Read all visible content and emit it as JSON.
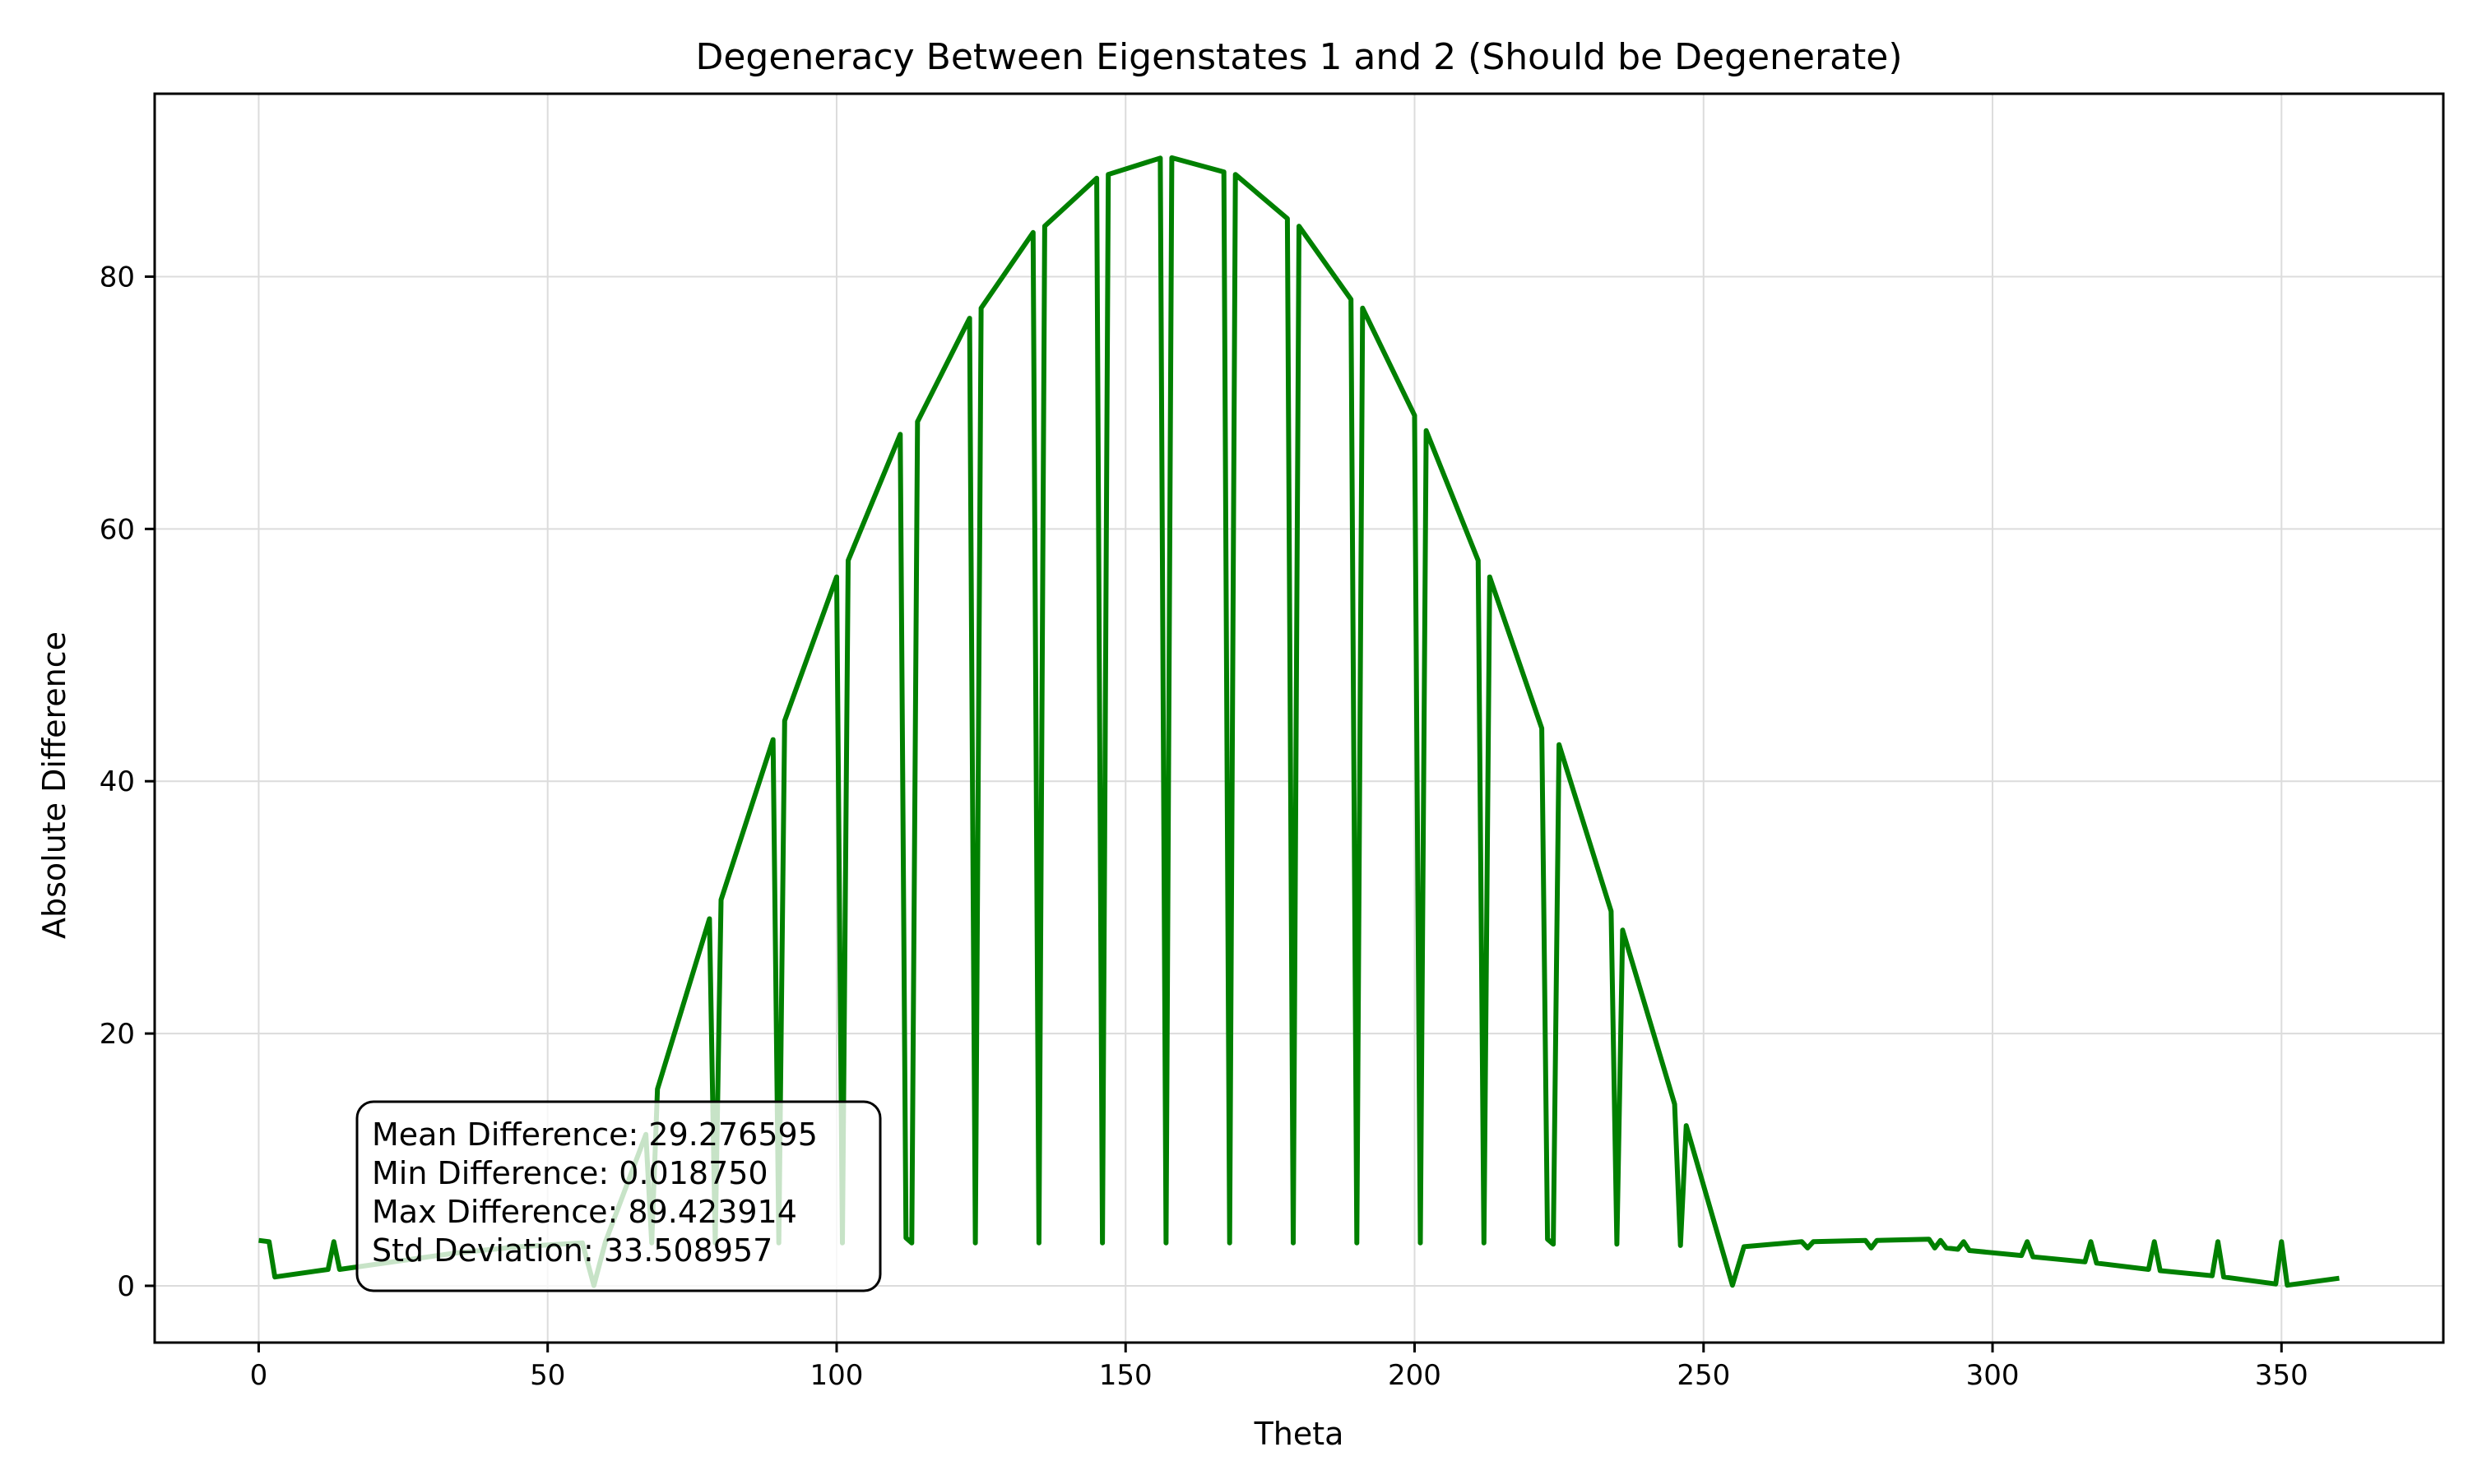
{
  "chart_data": {
    "type": "line",
    "title": "Degeneracy Between Eigenstates 1 and 2 (Should be Degenerate)",
    "xlabel": "Theta",
    "ylabel": "Absolute Difference",
    "xlim": [
      -18,
      378
    ],
    "ylim": [
      -4.5,
      94.5
    ],
    "xticks": [
      0,
      50,
      100,
      150,
      200,
      250,
      300,
      350
    ],
    "yticks": [
      0,
      20,
      40,
      60,
      80
    ],
    "grid": true,
    "line_color": "#008000",
    "series": [
      {
        "x": [
          0,
          1.8,
          2.8,
          12,
          13,
          14,
          34,
          45,
          56,
          58,
          60,
          67,
          68,
          69,
          78,
          79,
          80,
          89,
          90,
          91,
          100,
          101,
          102,
          111,
          112,
          113,
          114,
          123,
          124,
          125,
          134,
          135,
          136,
          145,
          146,
          147,
          156,
          157,
          158,
          167,
          168,
          169,
          178,
          179,
          180,
          189,
          190,
          191,
          200,
          201,
          202,
          211,
          212,
          213,
          222,
          223,
          224,
          225,
          234,
          235,
          236,
          245,
          246,
          247,
          255,
          257,
          267,
          268,
          269,
          278,
          279,
          280,
          289,
          290,
          291,
          292,
          294,
          295,
          296,
          305,
          306,
          307,
          316,
          317,
          318,
          327,
          328,
          329,
          338,
          339,
          340,
          349,
          350,
          351,
          360
        ],
        "y": [
          3.6,
          3.5,
          0.7,
          1.3,
          3.5,
          1.3,
          2.6,
          3.1,
          3.4,
          0.02,
          3.5,
          12.0,
          3.4,
          15.6,
          29.1,
          3.4,
          30.6,
          43.3,
          3.4,
          44.8,
          56.2,
          3.4,
          57.5,
          67.5,
          3.8,
          3.4,
          68.5,
          76.7,
          3.4,
          77.5,
          83.5,
          3.4,
          84.0,
          87.8,
          3.4,
          88.1,
          89.4,
          3.4,
          89.42,
          88.3,
          3.4,
          88.1,
          84.6,
          3.4,
          84.0,
          78.2,
          3.4,
          77.5,
          69.0,
          3.4,
          67.8,
          57.5,
          3.4,
          56.2,
          44.2,
          3.7,
          3.3,
          42.9,
          29.7,
          3.3,
          28.2,
          14.4,
          3.2,
          12.7,
          0.05,
          3.1,
          3.5,
          3.0,
          3.5,
          3.6,
          3.0,
          3.6,
          3.7,
          3.0,
          3.6,
          3.0,
          2.9,
          3.5,
          2.8,
          2.4,
          3.5,
          2.3,
          1.9,
          3.5,
          1.8,
          1.3,
          3.5,
          1.2,
          0.8,
          3.5,
          0.7,
          0.15,
          3.5,
          0.05,
          0.6
        ]
      }
    ],
    "annotation": {
      "lines": [
        "Mean Difference: 29.276595",
        "Min Difference: 0.018750",
        "Max Difference: 89.423914",
        "Std Deviation: 33.508957"
      ],
      "placement": "lower-left"
    }
  }
}
